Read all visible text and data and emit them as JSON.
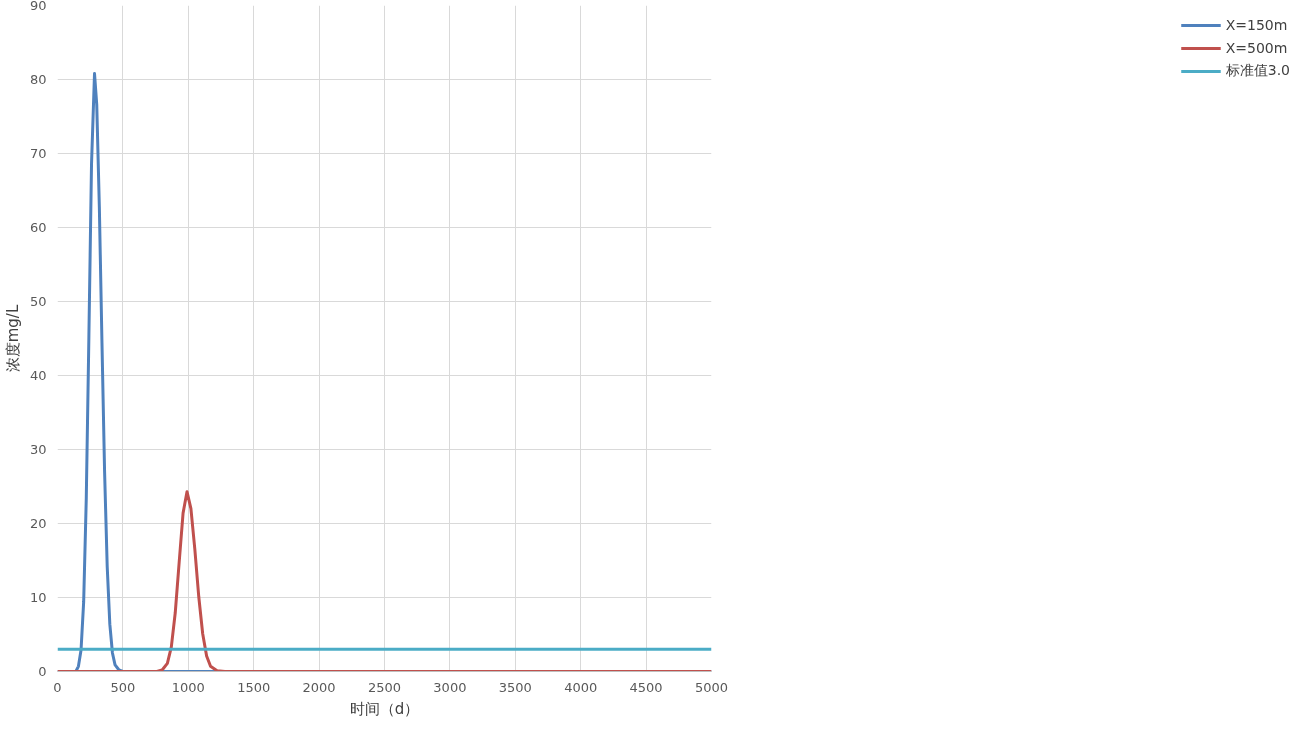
{
  "chart_data": {
    "type": "line",
    "xlabel": "时间（d）",
    "ylabel": "浓度mg/L",
    "xlim": [
      0,
      5000
    ],
    "ylim": [
      0,
      90
    ],
    "xticks": [
      0,
      500,
      1000,
      1500,
      2000,
      2500,
      3000,
      3500,
      4000,
      4500,
      5000
    ],
    "yticks": [
      0,
      10,
      20,
      30,
      40,
      50,
      60,
      70,
      80,
      90
    ],
    "grid": true,
    "legend": "right",
    "marker": "none",
    "series": [
      {
        "name": "X=150m",
        "color": "#4f81bd",
        "x": [
          0,
          140,
          160,
          180,
          200,
          220,
          240,
          260,
          283,
          300,
          320,
          340,
          360,
          380,
          400,
          420,
          440,
          470,
          500,
          1000,
          5000
        ],
        "values": [
          0,
          0,
          0.7,
          2.9,
          9.4,
          23.4,
          45.3,
          68.5,
          80.8,
          76.6,
          62.7,
          44.4,
          27.0,
          14.2,
          6.4,
          2.5,
          0.9,
          0.2,
          0,
          0,
          0
        ]
      },
      {
        "name": "X=500m",
        "color": "#c0504d",
        "x": [
          0,
          760,
          800,
          840,
          870,
          900,
          930,
          960,
          990,
          1020,
          1050,
          1080,
          1110,
          1140,
          1170,
          1220,
          1280,
          5000
        ],
        "values": [
          0,
          0,
          0.2,
          1.1,
          3.3,
          7.9,
          14.7,
          21.4,
          24.3,
          22.0,
          16.5,
          10.1,
          5.1,
          2.1,
          0.7,
          0.1,
          0,
          0
        ]
      },
      {
        "name": "标准值3.0",
        "color": "#4bacc6",
        "x": [
          0,
          5000
        ],
        "values": [
          3.0,
          3.0
        ]
      }
    ]
  }
}
